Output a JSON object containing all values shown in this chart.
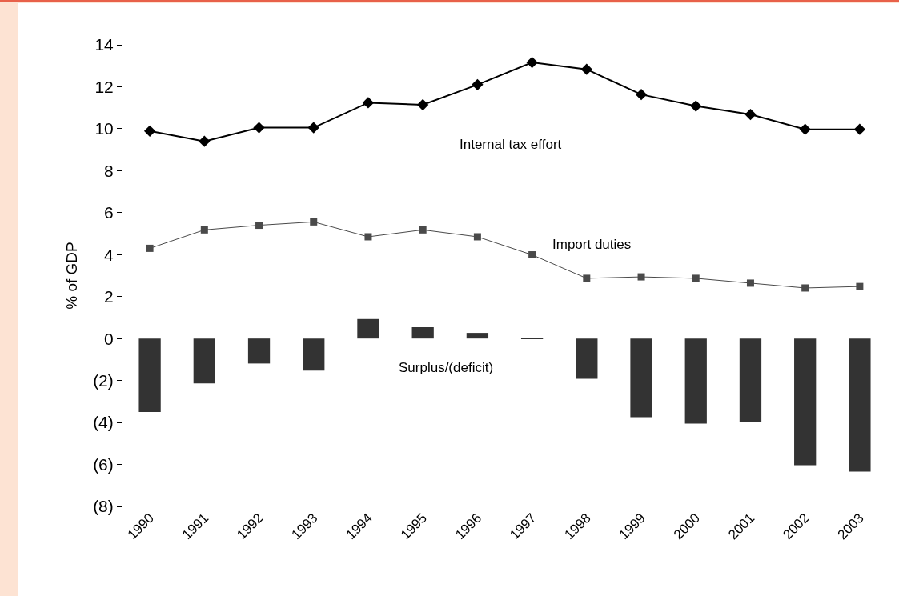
{
  "chart_data": {
    "type": "bar",
    "ylabel": "% of GDP",
    "categories": [
      "1990",
      "1991",
      "1992",
      "1993",
      "1994",
      "1995",
      "1996",
      "1997",
      "1998",
      "1999",
      "2000",
      "2001",
      "2002",
      "2003"
    ],
    "series": [
      {
        "color": "#333333",
        "values": [
          -3.5,
          -2.14,
          -1.19,
          -1.53,
          0.93,
          0.54,
          0.27,
          0.03,
          -1.92,
          -3.75,
          -4.05,
          -3.98,
          -6.04,
          -6.34
        ]
      },
      {
        "type": "line",
        "color": "#000000",
        "marker": "diamond",
        "line_style": "solid",
        "values": [
          9.89,
          9.4,
          10.05,
          10.05,
          11.24,
          11.14,
          12.1,
          13.16,
          12.83,
          11.63,
          11.08,
          10.68,
          9.97,
          9.97
        ]
      },
      {
        "type": "line",
        "color": "#4a4a4a",
        "marker": "square",
        "line_style": "solid",
        "values": [
          4.3,
          5.18,
          5.4,
          5.56,
          4.85,
          5.18,
          4.85,
          3.99,
          2.87,
          2.94,
          2.87,
          2.64,
          2.41,
          2.48
        ]
      }
    ],
    "annotations": [
      "Internal tax effort",
      "Import duties",
      "Surplus/(deficit)"
    ],
    "ylim": [
      -8,
      14
    ],
    "yticks": [
      {
        "value": -8,
        "label": "(8)"
      },
      {
        "value": -6,
        "label": "(6)"
      },
      {
        "value": -4,
        "label": "(4)"
      },
      {
        "value": -2,
        "label": "(2)"
      },
      0,
      2,
      4,
      6,
      8,
      10,
      12,
      14
    ],
    "grid": false
  }
}
